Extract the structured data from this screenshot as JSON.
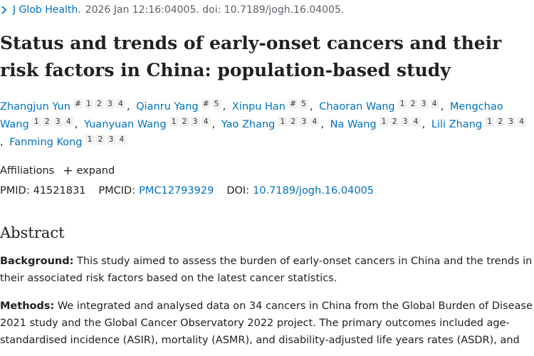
{
  "citation": {
    "journal": "J Glob Health.",
    "rest": "2026 Jan 12:16:04005. doi: 10.7189/jogh.16.04005."
  },
  "article": {
    "title": "Status and trends of early-onset cancers and their risk factors in China: population-based study"
  },
  "authors": [
    {
      "name": "Zhangjun Yun",
      "affils": [
        "#",
        "1",
        "2",
        "3",
        "4"
      ]
    },
    {
      "name": "Qianru Yang",
      "affils": [
        "#",
        "5"
      ]
    },
    {
      "name": "Xinpu Han",
      "affils": [
        "#",
        "5"
      ]
    },
    {
      "name": "Chaoran Wang",
      "affils": [
        "1",
        "2",
        "3",
        "4"
      ]
    },
    {
      "name": "Mengchao Wang",
      "affils": [
        "1",
        "2",
        "3",
        "4"
      ]
    },
    {
      "name": "Yuanyuan Wang",
      "affils": [
        "1",
        "2",
        "3",
        "4"
      ]
    },
    {
      "name": "Yao Zhang",
      "affils": [
        "1",
        "2",
        "3",
        "4"
      ]
    },
    {
      "name": "Na Wang",
      "affils": [
        "1",
        "2",
        "3",
        "4"
      ]
    },
    {
      "name": "Lili Zhang",
      "affils": [
        "1",
        "2",
        "3",
        "4"
      ]
    },
    {
      "name": "Fanming Kong",
      "affils": [
        "1",
        "2",
        "3",
        "4"
      ]
    }
  ],
  "affiliations": {
    "label": "Affiliations",
    "expand_label": "expand",
    "expand_icon": "plus-icon"
  },
  "ids": {
    "pmid_label": "PMID:",
    "pmid": "41521831",
    "pmcid_label": "PMCID:",
    "pmcid": "PMC12793929",
    "doi_label": "DOI:",
    "doi": "10.7189/jogh.16.04005"
  },
  "abstract": {
    "heading": "Abstract",
    "background_label": "Background:",
    "background_text": " This study aimed to assess the burden of early-onset cancers in China and the trends in their associated risk factors based on the latest cancer statistics.",
    "methods_label": "Methods:",
    "methods_text": " We integrated and analysed data on 34 cancers in China from the Global Burden of Disease 2021 study and the Global Cancer Observatory 2022 project. The primary outcomes included age-standardised incidence (ASIR), mortality (ASMR), and disability-adjusted life years rates (ASDR), and"
  },
  "colors": {
    "link": "#0071bc",
    "text": "#212121",
    "muted": "#5b616b"
  }
}
